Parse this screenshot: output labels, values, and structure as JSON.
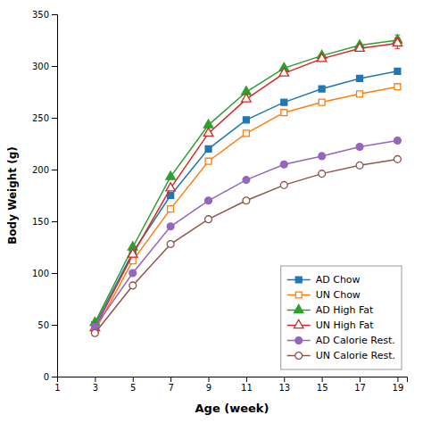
{
  "chart_data": {
    "type": "line",
    "xlabel": "Age (week)",
    "ylabel": "Body Weight (g)",
    "x": [
      3,
      5,
      7,
      9,
      11,
      13,
      15,
      17,
      19
    ],
    "xlim": [
      1,
      19.5
    ],
    "ylim": [
      0,
      350
    ],
    "xticks": [
      1,
      3,
      5,
      7,
      9,
      11,
      13,
      15,
      17,
      19
    ],
    "yticks": [
      0,
      50,
      100,
      150,
      200,
      250,
      300,
      350
    ],
    "grid": false,
    "legend": "lower right",
    "series": [
      {
        "name": "AD Chow",
        "marker": "square",
        "values": [
          50,
          120,
          175,
          220,
          248,
          265,
          278,
          288,
          295
        ]
      },
      {
        "name": "UN Chow",
        "marker": "square-open",
        "values": [
          44,
          112,
          162,
          208,
          235,
          255,
          265,
          273,
          280
        ]
      },
      {
        "name": "AD High Fat",
        "marker": "triangle",
        "values": [
          52,
          125,
          193,
          243,
          275,
          298,
          310,
          320,
          325
        ],
        "yerr": [
          0,
          0,
          0,
          0,
          0,
          0,
          0,
          0,
          5
        ]
      },
      {
        "name": "UN High Fat",
        "marker": "triangle-open",
        "values": [
          47,
          118,
          182,
          235,
          268,
          293,
          307,
          317,
          322
        ],
        "yerr": [
          0,
          0,
          0,
          0,
          0,
          0,
          0,
          0,
          5
        ]
      },
      {
        "name": "AD Calorie Rest.",
        "marker": "circle",
        "values": [
          48,
          100,
          145,
          170,
          190,
          205,
          213,
          222,
          228
        ]
      },
      {
        "name": "UN Calorie Rest.",
        "marker": "circle-open",
        "values": [
          42,
          88,
          128,
          152,
          170,
          185,
          196,
          204,
          210
        ]
      }
    ]
  }
}
